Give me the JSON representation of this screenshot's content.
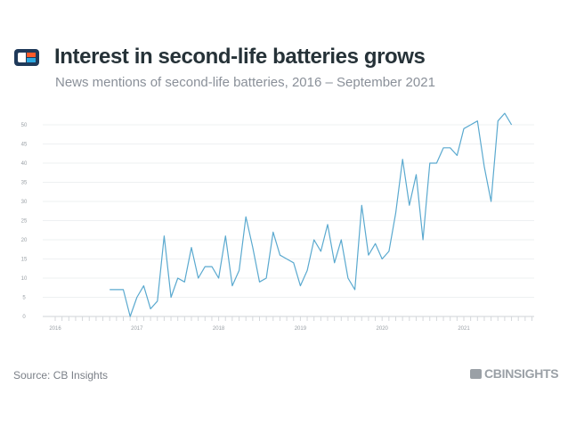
{
  "header": {
    "logo_icon": "cb-insights-logo",
    "title": "Interest in second-life batteries grows",
    "subtitle": "News mentions of second-life batteries, 2016 – September 2021"
  },
  "footer": {
    "source": "Source: CB Insights",
    "brand": "CBINSIGHTS"
  },
  "colors": {
    "line": "#5aa9cf",
    "title": "#263238",
    "subtitle": "#8a9099"
  },
  "chart_data": {
    "type": "line",
    "title": "Interest in second-life batteries grows",
    "subtitle": "News mentions of second-life batteries, 2016 – September 2021",
    "xlabel": "",
    "ylabel": "",
    "x_ticks": [
      "2016",
      "2017",
      "2018",
      "2019",
      "2020",
      "2021"
    ],
    "y_ticks": [
      0,
      5,
      10,
      15,
      20,
      25,
      30,
      35,
      40,
      45,
      50
    ],
    "ylim": [
      0,
      50
    ],
    "grid": true,
    "legend": "none",
    "series": [
      {
        "x": [
          "2016-09",
          "2016-10",
          "2016-11",
          "2016-12",
          "2017-01",
          "2017-02",
          "2017-03",
          "2017-04",
          "2017-05",
          "2017-06",
          "2017-07",
          "2017-08",
          "2017-09",
          "2017-10",
          "2017-11",
          "2017-12",
          "2018-01",
          "2018-02",
          "2018-03",
          "2018-04",
          "2018-05",
          "2018-06",
          "2018-07",
          "2018-08",
          "2018-09",
          "2018-10",
          "2018-11",
          "2018-12",
          "2019-01",
          "2019-02",
          "2019-03",
          "2019-04",
          "2019-05",
          "2019-06",
          "2019-07",
          "2019-08",
          "2019-09",
          "2019-10",
          "2019-11",
          "2019-12",
          "2020-01",
          "2020-02",
          "2020-03",
          "2020-04",
          "2020-05",
          "2020-06",
          "2020-07",
          "2020-08",
          "2020-09",
          "2020-10",
          "2020-11",
          "2020-12",
          "2021-01",
          "2021-02",
          "2021-03",
          "2021-04",
          "2021-05",
          "2021-06",
          "2021-07",
          "2021-08",
          "2021-09"
        ],
        "values": [
          7,
          7,
          7,
          0,
          5,
          8,
          2,
          4,
          21,
          5,
          10,
          9,
          18,
          10,
          13,
          13,
          10,
          21,
          8,
          12,
          26,
          18,
          9,
          10,
          22,
          16,
          15,
          14,
          8,
          12,
          20,
          17,
          24,
          14,
          20,
          10,
          7,
          29,
          16,
          19,
          15,
          17,
          27,
          41,
          29,
          37,
          20,
          40,
          40,
          44,
          44,
          42,
          49,
          50,
          51,
          39,
          30,
          51,
          53,
          50,
          null
        ]
      }
    ]
  }
}
